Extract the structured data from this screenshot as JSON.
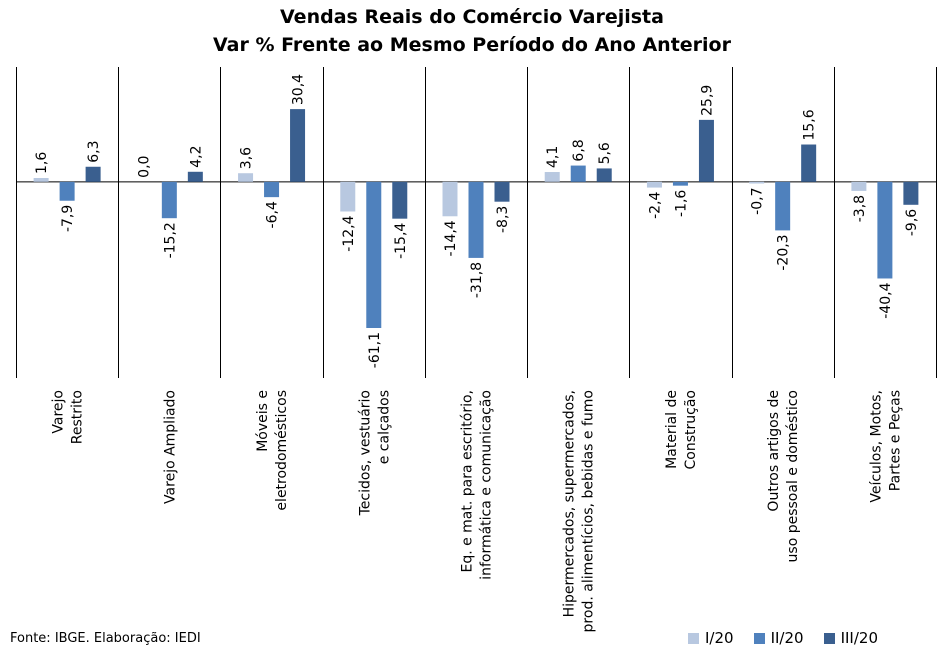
{
  "chart_data": {
    "type": "bar",
    "title": "Vendas Reais do Comércio Varejista",
    "subtitle": "Var % Frente ao Mesmo Período do Ano Anterior",
    "categories": [
      [
        "Varejo",
        "Restrito"
      ],
      [
        "Varejo Ampliado"
      ],
      [
        "Móveis e",
        "eletrodomésticos"
      ],
      [
        "Tecidos, vestuário",
        "e calçados"
      ],
      [
        "Eq. e mat. para escritório,",
        "informática e comunicação"
      ],
      [
        "Hipermercados, supermercados,",
        "prod. alimentícios, bebidas e fumo"
      ],
      [
        "Material de",
        "Construção"
      ],
      [
        "Outros artigos de",
        "uso pessoal e doméstico"
      ],
      [
        "Veículos, Motos,",
        "Partes e Peças"
      ]
    ],
    "series": [
      {
        "name": "I/20",
        "color": "#b8c8e0",
        "values": [
          1.6,
          0.0,
          3.6,
          -12.4,
          -14.4,
          4.1,
          -2.4,
          -0.7,
          -3.8
        ],
        "labels": [
          "1,6",
          "0,0",
          "3,6",
          "-12,4",
          "-14,4",
          "4,1",
          "-2,4",
          "-0,7",
          "-3,8"
        ]
      },
      {
        "name": "II/20",
        "color": "#4f81bd",
        "values": [
          -7.9,
          -15.2,
          -6.4,
          -61.1,
          -31.8,
          6.8,
          -1.6,
          -20.3,
          -40.4
        ],
        "labels": [
          "-7,9",
          "-15,2",
          "-6,4",
          "-61,1",
          "-31,8",
          "6,8",
          "-1,6",
          "-20,3",
          "-40,4"
        ]
      },
      {
        "name": "III/20",
        "color": "#3a5f8f",
        "values": [
          6.3,
          4.2,
          30.4,
          -15.4,
          -8.3,
          5.6,
          25.9,
          15.6,
          -9.6
        ],
        "labels": [
          "6,3",
          "4,2",
          "30,4",
          "-15,4",
          "-8,3",
          "5,6",
          "25,9",
          "15,6",
          "-9,6"
        ]
      }
    ],
    "ylim": [
      -82,
      48
    ],
    "grid": false,
    "legend": "bottom-right"
  },
  "source": "Fonte: IBGE. Elaboração: IEDI"
}
